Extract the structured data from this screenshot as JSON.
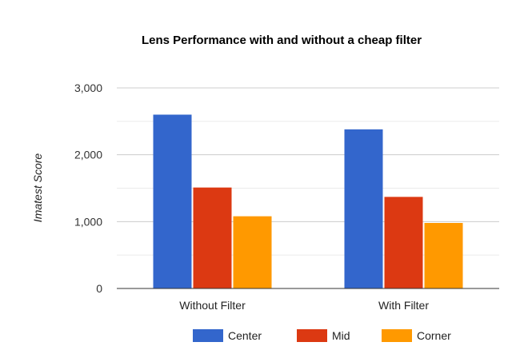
{
  "chart_data": {
    "type": "bar",
    "title": "Lens Performance with and without a cheap filter",
    "xlabel": "",
    "ylabel": "Imatest Score",
    "categories": [
      "Without Filter",
      "With Filter"
    ],
    "series": [
      {
        "name": "Center",
        "values": [
          2600,
          2380
        ],
        "color": "#3366cc"
      },
      {
        "name": "Mid",
        "values": [
          1510,
          1370
        ],
        "color": "#dc3912"
      },
      {
        "name": "Corner",
        "values": [
          1080,
          980
        ],
        "color": "#ff9900"
      }
    ],
    "ylim": [
      0,
      3000
    ],
    "yticks": [
      0,
      1000,
      2000,
      3000
    ],
    "ytick_labels": [
      "0",
      "1,000",
      "2,000",
      "3,000"
    ],
    "grid": true,
    "legend": "bottom"
  }
}
